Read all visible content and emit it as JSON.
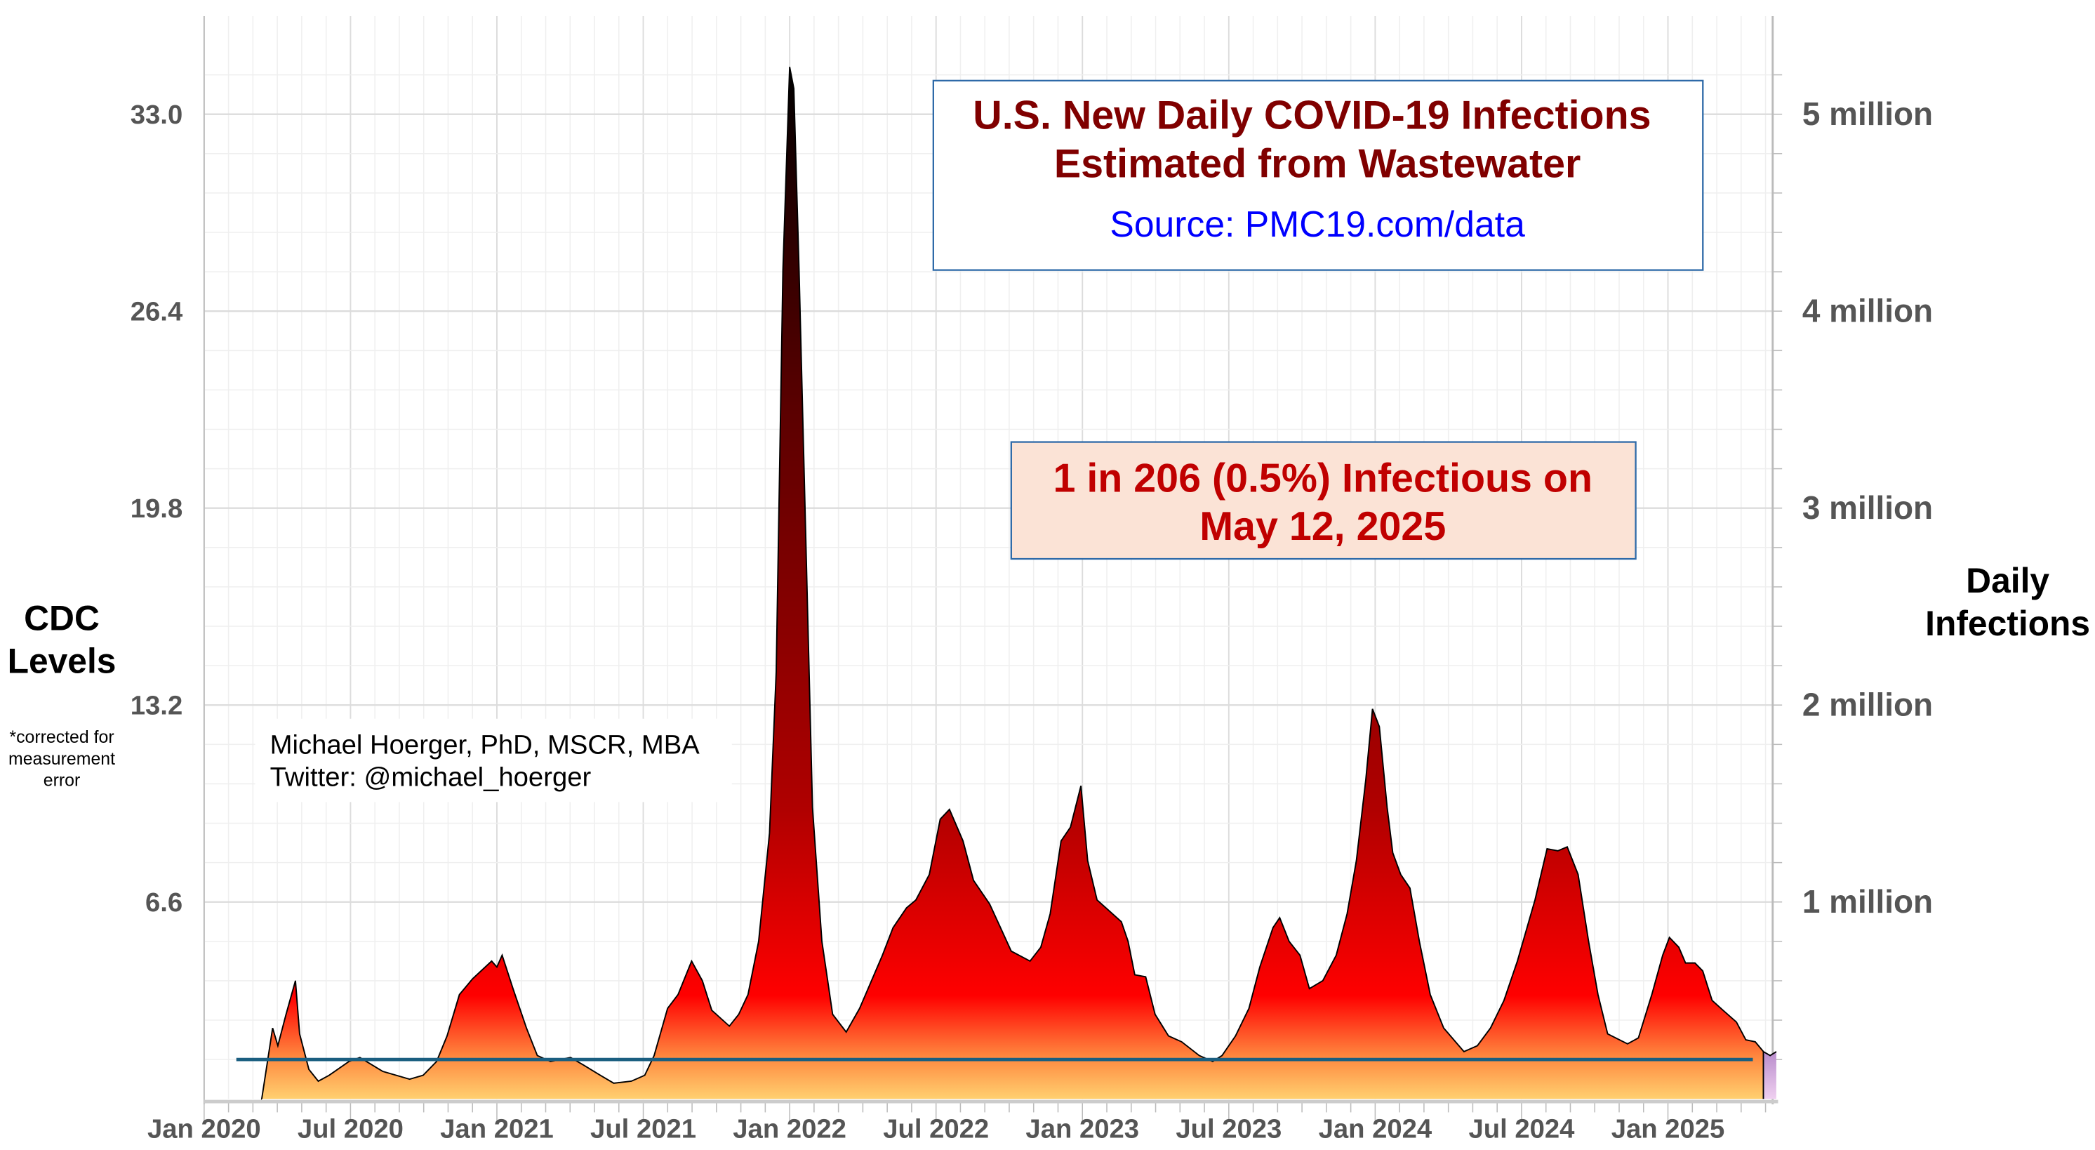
{
  "chart_data": {
    "type": "area",
    "title": "U.S. New Daily COVID-19 Infections",
    "subtitle": "Estimated from Wastewater",
    "source": "Source: PMC19.com/data",
    "callout_line1": "1 in 206 (0.5%) Infectious on",
    "callout_line2": "May 12, 2025",
    "author_line1": "Michael Hoerger, PhD, MSCR, MBA",
    "author_line2": "Twitter: @michael_hoerger",
    "ylabel_left_line1": "CDC",
    "ylabel_left_line2": "Levels",
    "ylabel_left_note_line1": "*corrected for",
    "ylabel_left_note_line2": "measurement",
    "ylabel_left_note_line3": "error",
    "ylabel_right_line1": "Daily",
    "ylabel_right_line2": "Infections",
    "xlim": [
      2020.0,
      2025.38
    ],
    "ylim_millions": [
      0,
      5.3
    ],
    "cdc_per_million": 6.6,
    "grid": true,
    "x_ticks": [
      {
        "value": 2020.0,
        "label": "Jan 2020"
      },
      {
        "value": 2020.5,
        "label": "Jul 2020"
      },
      {
        "value": 2021.0,
        "label": "Jan 2021"
      },
      {
        "value": 2021.5,
        "label": "Jul 2021"
      },
      {
        "value": 2022.0,
        "label": "Jan 2022"
      },
      {
        "value": 2022.5,
        "label": "Jul 2022"
      },
      {
        "value": 2023.0,
        "label": "Jan 2023"
      },
      {
        "value": 2023.5,
        "label": "Jul 2023"
      },
      {
        "value": 2024.0,
        "label": "Jan 2024"
      },
      {
        "value": 2024.5,
        "label": "Jul 2024"
      },
      {
        "value": 2025.0,
        "label": "Jan 2025"
      }
    ],
    "left_ticks": [
      {
        "value": 6.6,
        "label": "6.6"
      },
      {
        "value": 13.2,
        "label": "13.2"
      },
      {
        "value": 19.8,
        "label": "19.8"
      },
      {
        "value": 26.4,
        "label": "26.4"
      },
      {
        "value": 33.0,
        "label": "33.0"
      }
    ],
    "right_ticks": [
      {
        "value": 1,
        "label": "1 million"
      },
      {
        "value": 2,
        "label": "2 million"
      },
      {
        "value": 3,
        "label": "3 million"
      },
      {
        "value": 4,
        "label": "4 million"
      },
      {
        "value": 5,
        "label": "5 million"
      }
    ],
    "reference_line": {
      "value_millions": 0.2,
      "x_start": 2020.11,
      "x_end": 2025.29,
      "color": "#1a5e80"
    },
    "forecast_region": {
      "x_start": 2025.326,
      "x_end": 2025.37,
      "color": "#c9a0d8"
    },
    "series": [
      {
        "name": "Daily infections (millions)",
        "x": [
          2020.197,
          2020.234,
          2020.252,
          2020.28,
          2020.312,
          2020.326,
          2020.358,
          2020.39,
          2020.427,
          2020.495,
          2020.532,
          2020.61,
          2020.702,
          2020.748,
          2020.794,
          2020.83,
          2020.872,
          2020.917,
          2020.982,
          2021.0,
          2021.018,
          2021.055,
          2021.101,
          2021.138,
          2021.183,
          2021.252,
          2021.298,
          2021.353,
          2021.399,
          2021.459,
          2021.505,
          2021.537,
          2021.583,
          2021.619,
          2021.665,
          2021.702,
          2021.734,
          2021.794,
          2021.826,
          2021.858,
          2021.894,
          2021.931,
          2021.954,
          2021.977,
          2022.0,
          2022.014,
          2022.032,
          2022.055,
          2022.078,
          2022.11,
          2022.147,
          2022.193,
          2022.239,
          2022.317,
          2022.353,
          2022.399,
          2022.431,
          2022.477,
          2022.514,
          2022.546,
          2022.592,
          2022.628,
          2022.683,
          2022.72,
          2022.757,
          2022.821,
          2022.858,
          2022.89,
          2022.927,
          2022.959,
          2022.995,
          2023.018,
          2023.05,
          2023.133,
          2023.156,
          2023.179,
          2023.216,
          2023.248,
          2023.294,
          2023.339,
          2023.399,
          2023.445,
          2023.477,
          2023.523,
          2023.569,
          2023.606,
          2023.651,
          2023.674,
          2023.706,
          2023.743,
          2023.775,
          2023.821,
          2023.867,
          2023.904,
          2023.936,
          2023.968,
          2023.991,
          2024.014,
          2024.041,
          2024.06,
          2024.087,
          2024.119,
          2024.151,
          2024.188,
          2024.234,
          2024.303,
          2024.349,
          2024.394,
          2024.44,
          2024.486,
          2024.546,
          2024.587,
          2024.624,
          2024.656,
          2024.693,
          2024.729,
          2024.761,
          2024.794,
          2024.862,
          2024.899,
          2024.945,
          2024.982,
          2025.005,
          2025.037,
          2025.06,
          2025.092,
          2025.119,
          2025.151,
          2025.188,
          2025.234,
          2025.266,
          2025.298,
          2025.326,
          2025.349,
          2025.37
        ],
        "values": [
          0,
          0.36,
          0.27,
          0.43,
          0.6,
          0.33,
          0.15,
          0.09,
          0.12,
          0.19,
          0.21,
          0.14,
          0.1,
          0.12,
          0.19,
          0.32,
          0.53,
          0.61,
          0.7,
          0.67,
          0.73,
          0.56,
          0.36,
          0.22,
          0.19,
          0.21,
          0.17,
          0.12,
          0.08,
          0.09,
          0.12,
          0.22,
          0.46,
          0.53,
          0.7,
          0.6,
          0.45,
          0.37,
          0.43,
          0.53,
          0.8,
          1.35,
          2.17,
          4.21,
          5.24,
          5.13,
          4.21,
          2.85,
          1.48,
          0.8,
          0.43,
          0.34,
          0.46,
          0.73,
          0.87,
          0.97,
          1.01,
          1.14,
          1.42,
          1.47,
          1.31,
          1.11,
          0.99,
          0.87,
          0.75,
          0.7,
          0.77,
          0.94,
          1.31,
          1.38,
          1.59,
          1.21,
          1.01,
          0.9,
          0.8,
          0.63,
          0.62,
          0.43,
          0.32,
          0.29,
          0.22,
          0.19,
          0.22,
          0.32,
          0.46,
          0.67,
          0.87,
          0.92,
          0.8,
          0.73,
          0.56,
          0.6,
          0.73,
          0.94,
          1.21,
          1.62,
          1.98,
          1.89,
          1.48,
          1.25,
          1.14,
          1.07,
          0.8,
          0.53,
          0.36,
          0.24,
          0.27,
          0.36,
          0.5,
          0.7,
          1.01,
          1.27,
          1.26,
          1.28,
          1.14,
          0.8,
          0.53,
          0.33,
          0.28,
          0.31,
          0.53,
          0.73,
          0.82,
          0.77,
          0.69,
          0.69,
          0.65,
          0.5,
          0.45,
          0.39,
          0.3,
          0.29,
          0.24,
          0.22,
          0.24
        ]
      }
    ],
    "colors": {
      "title": "#800000",
      "source": "#0000ff",
      "callout_text": "#c00000",
      "callout_bg": "#fbe3d6",
      "box_border": "#2e6aa8",
      "axis_text": "#555555"
    }
  }
}
